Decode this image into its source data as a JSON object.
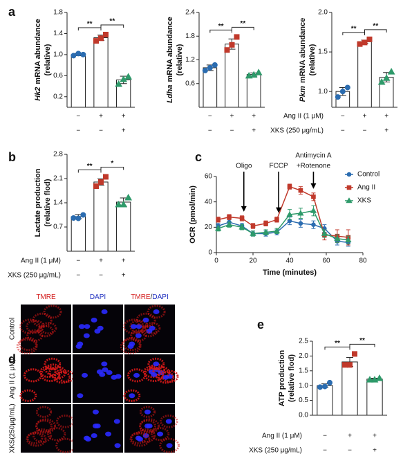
{
  "chart_data": [
    {
      "type": "bar",
      "panel": "a",
      "gene": "Hk2",
      "ylabel": "mRNA abundance",
      "ylabel_sub": "(relative)",
      "values": [
        1.0,
        1.32,
        0.52
      ],
      "errors": [
        0.02,
        0.05,
        0.07
      ],
      "points": [
        [
          0.98,
          1.0,
          1.02
        ],
        [
          1.26,
          1.38,
          1.31
        ],
        [
          0.44,
          0.58,
          0.53
        ]
      ],
      "bar_color": "#ffffff",
      "point_colors": [
        "#2b6cb0",
        "#c0392b",
        "#2e9a6a"
      ],
      "point_markers": [
        "circle",
        "square",
        "triangle"
      ],
      "ylim": [
        0,
        1.8
      ],
      "yticks": [
        0.2,
        0.6,
        {
          "value": 1,
          "label": "1.0"
        },
        1.4,
        1.8
      ],
      "significance": [
        "**",
        "**"
      ],
      "conditions": [
        {
          "marks": [
            "−",
            "+",
            "+"
          ]
        },
        {
          "marks": [
            "−",
            "−",
            "+"
          ]
        }
      ]
    },
    {
      "type": "bar",
      "gene": "Ldha",
      "ylabel": "mRNA abundance",
      "ylabel_sub": "(relative)",
      "values": [
        1.0,
        1.6,
        0.83
      ],
      "errors": [
        0.07,
        0.13,
        0.04
      ],
      "points": [
        [
          0.93,
          1.07,
          1.0
        ],
        [
          1.45,
          1.78,
          1.58
        ],
        [
          0.8,
          0.88,
          0.82
        ]
      ],
      "bar_color": "#ffffff",
      "point_colors": [
        "#2b6cb0",
        "#c0392b",
        "#2e9a6a"
      ],
      "point_markers": [
        "circle",
        "square",
        "triangle"
      ],
      "ylim": [
        0,
        2.4
      ],
      "yticks": [
        0.6,
        1.2,
        1.8,
        2.4
      ],
      "significance": [
        "**",
        "**"
      ],
      "conditions": [
        {
          "marks": [
            "−",
            "+",
            "+"
          ]
        },
        {
          "marks": [
            "−",
            "−",
            "+"
          ]
        }
      ]
    },
    {
      "type": "bar",
      "gene": "Pkm",
      "ylabel": "mRNA abundance",
      "ylabel_sub": "(relative)",
      "values": [
        1.0,
        1.63,
        1.18
      ],
      "errors": [
        0.05,
        0.02,
        0.06
      ],
      "points": [
        [
          0.93,
          1.05,
          1.0
        ],
        [
          1.6,
          1.66,
          1.62
        ],
        [
          1.12,
          1.25,
          1.17
        ]
      ],
      "bar_color": "#ffffff",
      "point_colors": [
        "#2b6cb0",
        "#c0392b",
        "#2e9a6a"
      ],
      "point_markers": [
        "circle",
        "square",
        "triangle"
      ],
      "ylim": [
        0.8,
        2.0
      ],
      "yticks": [
        {
          "value": 1,
          "label": "1.0"
        },
        1.5,
        {
          "value": 2,
          "label": "2.0"
        }
      ],
      "significance": [
        "**",
        "**"
      ],
      "conditions": [
        {
          "label": "Ang II (1 μM)",
          "marks": [
            "−",
            "+",
            "+"
          ]
        },
        {
          "label": "XKS (250 μg/mL)",
          "marks": [
            "−",
            "−",
            "+"
          ]
        }
      ]
    },
    {
      "type": "bar",
      "panel": "b",
      "ylabel": "Lactate production",
      "ylabel_sub": "(relative flod)",
      "values": [
        1.0,
        2.0,
        1.42
      ],
      "errors": [
        0.06,
        0.09,
        0.12
      ],
      "points": [
        [
          0.96,
          1.05,
          0.95
        ],
        [
          1.88,
          2.15,
          2.0
        ],
        [
          1.35,
          1.55,
          1.35
        ]
      ],
      "bar_color": "#ffffff",
      "point_colors": [
        "#2b6cb0",
        "#c0392b",
        "#2e9a6a"
      ],
      "point_markers": [
        "circle",
        "square",
        "triangle"
      ],
      "ylim": [
        0,
        2.8
      ],
      "yticks": [
        0.7,
        1.4,
        2.1,
        2.8
      ],
      "significance": [
        "**",
        "*"
      ],
      "conditions": [
        {
          "label": "Ang II (1 μM)",
          "marks": [
            "−",
            "+",
            "+"
          ]
        },
        {
          "label": "XKS (250 μg/mL)",
          "marks": [
            "−",
            "−",
            "+"
          ]
        }
      ]
    },
    {
      "type": "line",
      "panel": "c",
      "xlabel": "Time (minutes)",
      "ylabel": "OCR (pmol/min)",
      "x": [
        1,
        7,
        14,
        20,
        27,
        33,
        40,
        46,
        53,
        59,
        66,
        72
      ],
      "series": [
        {
          "name": "Control",
          "color": "#2b6cb0",
          "marker": "circle",
          "values": [
            21,
            24,
            21,
            15,
            15,
            16,
            25,
            23,
            22,
            19,
            9,
            8
          ],
          "errors": [
            2,
            2,
            2,
            2,
            2,
            2,
            3,
            3,
            3,
            3,
            3,
            3
          ]
        },
        {
          "name": "Ang II",
          "color": "#c0392b",
          "marker": "square",
          "values": [
            26,
            28,
            27,
            21,
            23,
            26,
            52,
            49,
            44,
            14,
            13,
            12
          ],
          "errors": [
            2,
            2,
            2,
            2,
            2,
            2,
            2,
            3,
            3,
            4,
            5,
            6
          ]
        },
        {
          "name": "XKS",
          "color": "#2e9a6a",
          "marker": "triangle",
          "values": [
            19,
            22,
            20,
            15,
            16,
            17,
            30,
            31,
            33,
            15,
            11,
            10
          ],
          "errors": [
            2,
            2,
            2,
            2,
            2,
            2,
            4,
            4,
            4,
            3,
            3,
            3
          ]
        }
      ],
      "annotations": [
        {
          "x": 15,
          "lines": [
            "Oligo"
          ]
        },
        {
          "x": 34,
          "lines": [
            "FCCP"
          ]
        },
        {
          "x": 53,
          "lines": [
            "Antimycin A",
            "+Rotenone"
          ]
        }
      ],
      "xlim": [
        0,
        80
      ],
      "xticks": [
        0,
        20,
        40,
        60,
        80
      ],
      "ylim": [
        0,
        60
      ],
      "yticks": [
        0,
        20,
        40,
        60
      ],
      "legend": "upper right",
      "grid": false
    },
    {
      "type": "bar",
      "panel": "e",
      "ylabel": "ATP production",
      "ylabel_sub": "(relative flod)",
      "values": [
        1.0,
        1.8,
        1.22
      ],
      "errors": [
        0.06,
        0.15,
        0.03
      ],
      "points": [
        [
          0.95,
          1.1,
          0.97
        ],
        [
          1.7,
          2.07,
          1.7
        ],
        [
          1.2,
          1.25,
          1.2
        ]
      ],
      "bar_color": "#ffffff",
      "point_colors": [
        "#2b6cb0",
        "#c0392b",
        "#2e9a6a"
      ],
      "point_markers": [
        "circle",
        "square",
        "triangle"
      ],
      "ylim": [
        0,
        2.5
      ],
      "yticks": [
        {
          "value": 0,
          "label": "0.0"
        },
        0.5,
        {
          "value": 1,
          "label": "1.0"
        },
        1.5,
        {
          "value": 2,
          "label": "2.0"
        },
        2.5
      ],
      "significance": [
        "**",
        "**"
      ],
      "conditions": [
        {
          "label": "Ang II (1 μM)",
          "marks": [
            "−",
            "+",
            "+"
          ]
        },
        {
          "label": "XKS (250 μg/mL)",
          "marks": [
            "−",
            "−",
            "+"
          ]
        }
      ]
    }
  ],
  "image_panel": {
    "panel": "d",
    "columns": [
      [
        "TMRE"
      ],
      [
        "DAPI"
      ],
      [
        "TMRE",
        "/",
        "DAPI"
      ]
    ],
    "column_colors": [
      [
        "#d42020"
      ],
      [
        "#2030c0"
      ],
      [
        "#d42020",
        "#222222",
        "#2030c0"
      ]
    ],
    "rows": [
      "Control",
      "Ang II (1 μM)",
      "XKS(250μg/mL)"
    ]
  }
}
